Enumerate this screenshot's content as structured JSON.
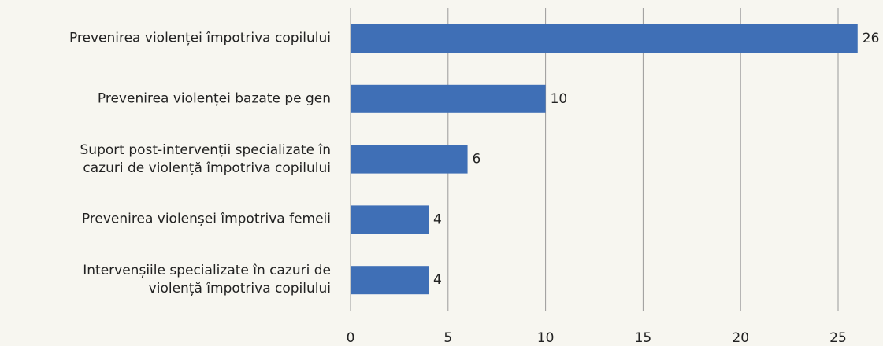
{
  "chart_data": {
    "type": "bar",
    "orientation": "horizontal",
    "categories": [
      "Prevenirea violenței împotriva copilului",
      "Prevenirea violenței bazate pe gen",
      "Suport post-intervenții specializate în\ncazuri de violență împotriva copilului",
      "Prevenirea violenșei împotriva femeii",
      "Intervenșiile specializate în cazuri de\nviolență împotriva copilului"
    ],
    "values": [
      26,
      10,
      6,
      4,
      4
    ],
    "color": "#3f6fb6",
    "xlim": [
      0,
      26
    ],
    "xticks": [
      0,
      5,
      10,
      15,
      20,
      25
    ],
    "grid": true
  }
}
